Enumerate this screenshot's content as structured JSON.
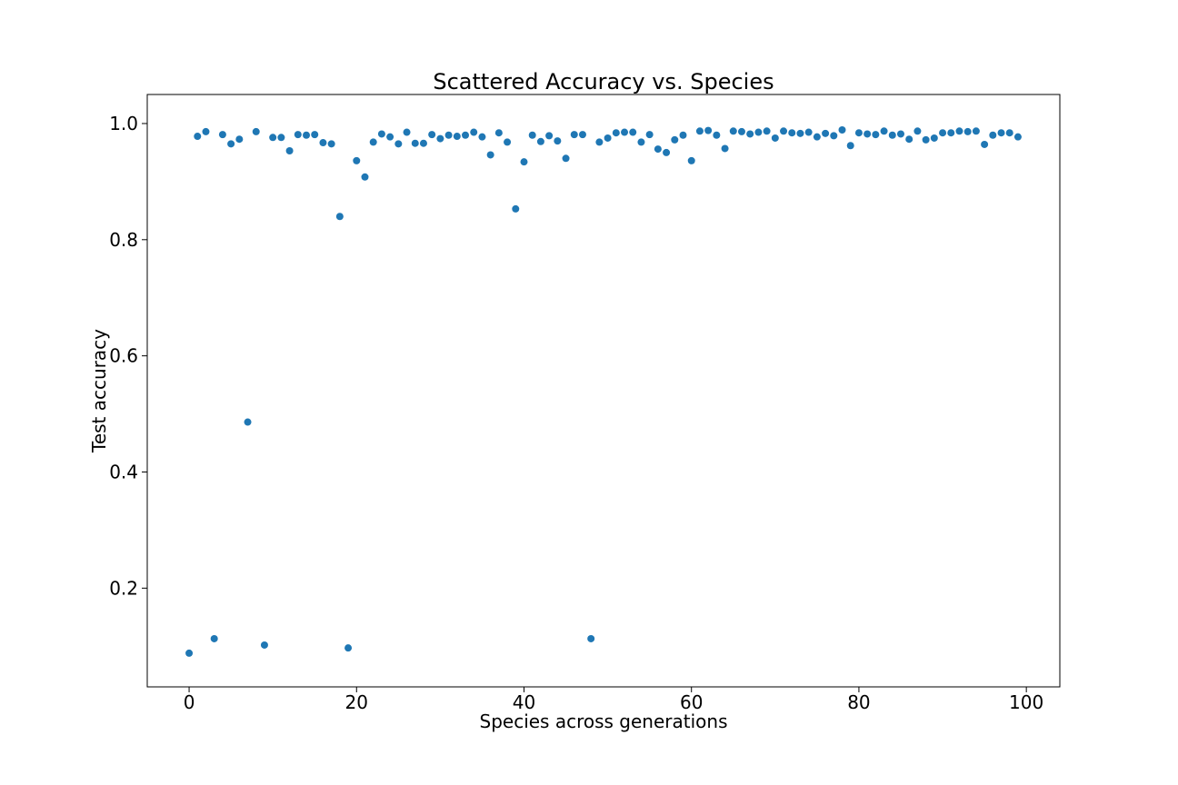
{
  "chart_data": {
    "type": "scatter",
    "title": "Scattered Accuracy vs. Species",
    "xlabel": "Species across generations",
    "ylabel": "Test accuracy",
    "xlim": [
      -5,
      104
    ],
    "ylim": [
      0.03,
      1.05
    ],
    "xticks": [
      0,
      20,
      40,
      60,
      80,
      100
    ],
    "xtick_labels": [
      "0",
      "20",
      "40",
      "60",
      "80",
      "100"
    ],
    "yticks": [
      0.2,
      0.4,
      0.6,
      0.8,
      1.0
    ],
    "ytick_labels": [
      "0.2",
      "0.4",
      "0.6",
      "0.8",
      "1.0"
    ],
    "grid": false,
    "marker_color": "#1f77b4",
    "x": [
      0,
      1,
      2,
      3,
      4,
      5,
      6,
      7,
      8,
      9,
      10,
      11,
      12,
      13,
      14,
      15,
      16,
      17,
      18,
      19,
      20,
      21,
      22,
      23,
      24,
      25,
      26,
      27,
      28,
      29,
      30,
      31,
      32,
      33,
      34,
      35,
      36,
      37,
      38,
      39,
      40,
      41,
      42,
      43,
      44,
      45,
      46,
      47,
      48,
      49,
      50,
      51,
      52,
      53,
      54,
      55,
      56,
      57,
      58,
      59,
      60,
      61,
      62,
      63,
      64,
      65,
      66,
      67,
      68,
      69,
      70,
      71,
      72,
      73,
      74,
      75,
      76,
      77,
      78,
      79,
      80,
      81,
      82,
      83,
      84,
      85,
      86,
      87,
      88,
      89,
      90,
      91,
      92,
      93,
      94,
      95,
      96,
      97,
      98,
      99
    ],
    "y": [
      0.088,
      0.978,
      0.986,
      0.113,
      0.981,
      0.965,
      0.973,
      0.486,
      0.986,
      0.102,
      0.976,
      0.976,
      0.953,
      0.981,
      0.98,
      0.981,
      0.967,
      0.965,
      0.84,
      0.097,
      0.936,
      0.908,
      0.968,
      0.982,
      0.977,
      0.965,
      0.985,
      0.966,
      0.966,
      0.981,
      0.974,
      0.98,
      0.978,
      0.98,
      0.985,
      0.977,
      0.946,
      0.984,
      0.968,
      0.853,
      0.934,
      0.98,
      0.969,
      0.979,
      0.97,
      0.94,
      0.981,
      0.981,
      0.113,
      0.968,
      0.975,
      0.984,
      0.985,
      0.985,
      0.968,
      0.981,
      0.956,
      0.95,
      0.972,
      0.98,
      0.936,
      0.987,
      0.988,
      0.98,
      0.957,
      0.987,
      0.986,
      0.982,
      0.985,
      0.987,
      0.975,
      0.987,
      0.984,
      0.983,
      0.985,
      0.977,
      0.983,
      0.979,
      0.989,
      0.962,
      0.984,
      0.982,
      0.981,
      0.987,
      0.98,
      0.982,
      0.973,
      0.987,
      0.972,
      0.975,
      0.984,
      0.984,
      0.987,
      0.986,
      0.987,
      0.964,
      0.98,
      0.984,
      0.984,
      0.977
    ]
  }
}
